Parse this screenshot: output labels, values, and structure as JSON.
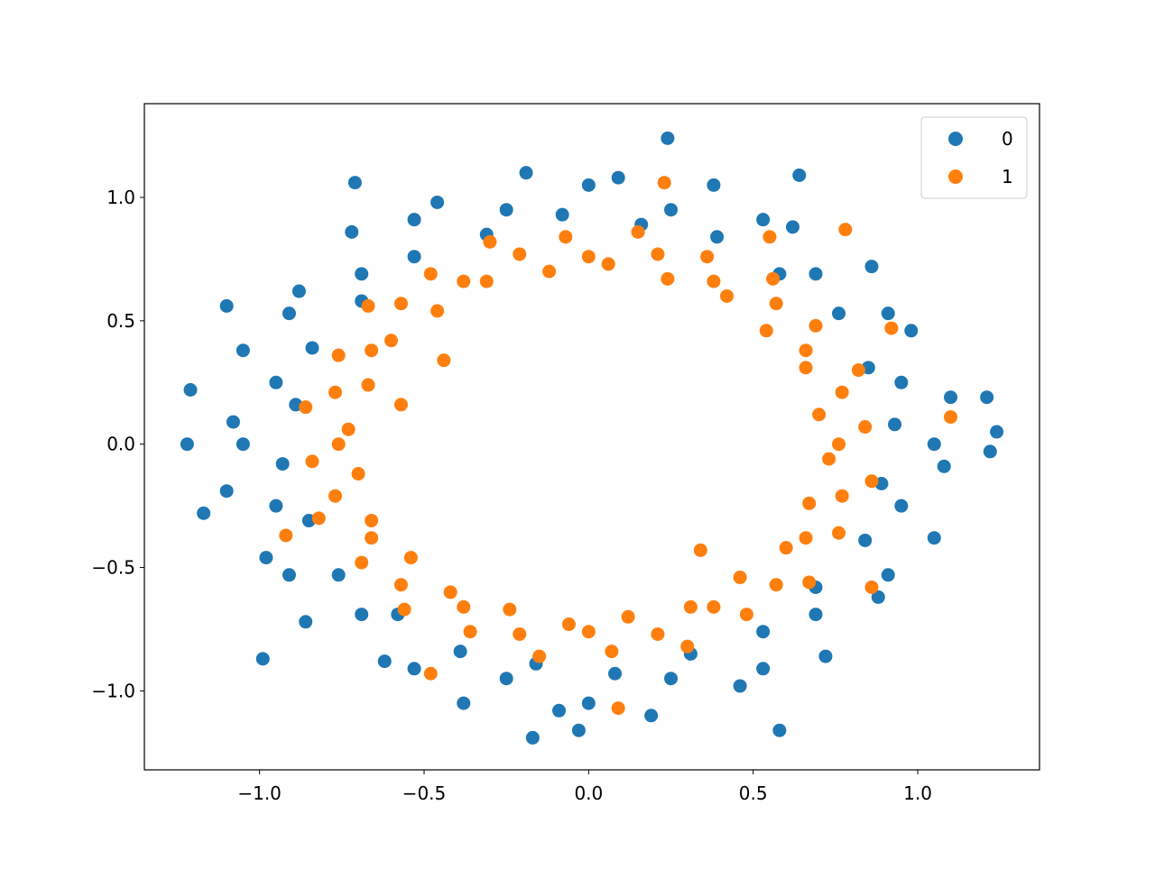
{
  "chart_data": {
    "type": "scatter",
    "title": "",
    "xlabel": "",
    "ylabel": "",
    "xlim": [
      -1.35,
      1.37
    ],
    "ylim": [
      -1.32,
      1.38
    ],
    "xticks": [
      -1.0,
      -0.5,
      0.0,
      0.5,
      1.0
    ],
    "yticks": [
      -1.0,
      -0.5,
      0.0,
      0.5,
      1.0
    ],
    "xtick_labels": [
      "−1.0",
      "−0.5",
      "0.0",
      "0.5",
      "1.0"
    ],
    "ytick_labels": [
      "−1.0",
      "−0.5",
      "0.0",
      "0.5",
      "1.0"
    ],
    "grid": false,
    "legend_position": "top-right",
    "series": [
      {
        "name": "0",
        "color": "#1f77b4",
        "points": [
          [
            1.05,
            0
          ],
          [
            0.93,
            0.08
          ],
          [
            1.1,
            0.19
          ],
          [
            0.95,
            0.25
          ],
          [
            0.85,
            0.31
          ],
          [
            0.98,
            0.46
          ],
          [
            0.91,
            0.53
          ],
          [
            0.76,
            0.53
          ],
          [
            0.86,
            0.72
          ],
          [
            0.69,
            0.69
          ],
          [
            0.58,
            0.69
          ],
          [
            0.62,
            0.88
          ],
          [
            0.53,
            0.91
          ],
          [
            0.39,
            0.84
          ],
          [
            0.38,
            1.05
          ],
          [
            0.25,
            0.95
          ],
          [
            0.16,
            0.89
          ],
          [
            0.09,
            1.08
          ],
          [
            0,
            1.05
          ],
          [
            -0.08,
            0.93
          ],
          [
            -0.19,
            1.1
          ],
          [
            -0.25,
            0.95
          ],
          [
            -0.31,
            0.85
          ],
          [
            -0.46,
            0.98
          ],
          [
            -0.53,
            0.91
          ],
          [
            -0.53,
            0.76
          ],
          [
            -0.72,
            0.86
          ],
          [
            -0.69,
            0.69
          ],
          [
            -0.69,
            0.58
          ],
          [
            -0.88,
            0.62
          ],
          [
            -0.91,
            0.53
          ],
          [
            -0.84,
            0.39
          ],
          [
            -1.05,
            0.38
          ],
          [
            -0.95,
            0.25
          ],
          [
            -0.89,
            0.16
          ],
          [
            -1.08,
            0.09
          ],
          [
            -1.05,
            0
          ],
          [
            -0.93,
            -0.08
          ],
          [
            -1.1,
            -0.19
          ],
          [
            -0.95,
            -0.25
          ],
          [
            -0.85,
            -0.31
          ],
          [
            -0.98,
            -0.46
          ],
          [
            -0.91,
            -0.53
          ],
          [
            -0.76,
            -0.53
          ],
          [
            -0.86,
            -0.72
          ],
          [
            -0.69,
            -0.69
          ],
          [
            -0.58,
            -0.69
          ],
          [
            -0.62,
            -0.88
          ],
          [
            -0.53,
            -0.91
          ],
          [
            -0.39,
            -0.84
          ],
          [
            -0.38,
            -1.05
          ],
          [
            -0.25,
            -0.95
          ],
          [
            -0.16,
            -0.89
          ],
          [
            -0.09,
            -1.08
          ],
          [
            0,
            -1.05
          ],
          [
            0.08,
            -0.93
          ],
          [
            0.19,
            -1.1
          ],
          [
            0.25,
            -0.95
          ],
          [
            0.31,
            -0.85
          ],
          [
            0.46,
            -0.98
          ],
          [
            0.53,
            -0.91
          ],
          [
            0.53,
            -0.76
          ],
          [
            0.72,
            -0.86
          ],
          [
            0.69,
            -0.69
          ],
          [
            0.69,
            -0.58
          ],
          [
            0.88,
            -0.62
          ],
          [
            0.91,
            -0.53
          ],
          [
            0.84,
            -0.39
          ],
          [
            1.05,
            -0.38
          ],
          [
            0.95,
            -0.25
          ],
          [
            0.89,
            -0.16
          ],
          [
            1.08,
            -0.09
          ],
          [
            0.24,
            1.24
          ],
          [
            -1.22,
            0.0
          ],
          [
            -1.21,
            0.22
          ],
          [
            -0.99,
            -0.87
          ],
          [
            0.58,
            -1.16
          ],
          [
            -0.17,
            -1.19
          ],
          [
            1.24,
            0.05
          ],
          [
            1.21,
            0.19
          ],
          [
            -1.17,
            -0.28
          ],
          [
            -0.71,
            1.06
          ],
          [
            -1.1,
            0.56
          ],
          [
            1.22,
            -0.03
          ],
          [
            0.64,
            1.09
          ],
          [
            -0.03,
            -1.16
          ]
        ]
      },
      {
        "name": "1",
        "color": "#ff7f0e",
        "points": [
          [
            0.76,
            0
          ],
          [
            0.84,
            0.07
          ],
          [
            0.7,
            0.12
          ],
          [
            0.77,
            0.21
          ],
          [
            0.82,
            0.3
          ],
          [
            0.66,
            0.31
          ],
          [
            0.66,
            0.38
          ],
          [
            0.69,
            0.48
          ],
          [
            0.54,
            0.46
          ],
          [
            0.57,
            0.57
          ],
          [
            0.56,
            0.67
          ],
          [
            0.42,
            0.6
          ],
          [
            0.38,
            0.66
          ],
          [
            0.36,
            0.76
          ],
          [
            0.24,
            0.67
          ],
          [
            0.21,
            0.77
          ],
          [
            0.15,
            0.86
          ],
          [
            0.06,
            0.73
          ],
          [
            0,
            0.76
          ],
          [
            -0.07,
            0.84
          ],
          [
            -0.12,
            0.7
          ],
          [
            -0.21,
            0.77
          ],
          [
            -0.3,
            0.82
          ],
          [
            -0.31,
            0.66
          ],
          [
            -0.38,
            0.66
          ],
          [
            -0.48,
            0.69
          ],
          [
            -0.46,
            0.54
          ],
          [
            -0.57,
            0.57
          ],
          [
            -0.67,
            0.56
          ],
          [
            -0.6,
            0.42
          ],
          [
            -0.66,
            0.38
          ],
          [
            -0.76,
            0.36
          ],
          [
            -0.67,
            0.24
          ],
          [
            -0.77,
            0.21
          ],
          [
            -0.86,
            0.15
          ],
          [
            -0.73,
            0.06
          ],
          [
            -0.76,
            0
          ],
          [
            -0.84,
            -0.07
          ],
          [
            -0.7,
            -0.12
          ],
          [
            -0.77,
            -0.21
          ],
          [
            -0.82,
            -0.3
          ],
          [
            -0.66,
            -0.31
          ],
          [
            -0.66,
            -0.38
          ],
          [
            -0.69,
            -0.48
          ],
          [
            -0.54,
            -0.46
          ],
          [
            -0.57,
            -0.57
          ],
          [
            -0.56,
            -0.67
          ],
          [
            -0.42,
            -0.6
          ],
          [
            -0.38,
            -0.66
          ],
          [
            -0.36,
            -0.76
          ],
          [
            -0.24,
            -0.67
          ],
          [
            -0.21,
            -0.77
          ],
          [
            -0.15,
            -0.86
          ],
          [
            -0.06,
            -0.73
          ],
          [
            0,
            -0.76
          ],
          [
            0.07,
            -0.84
          ],
          [
            0.12,
            -0.7
          ],
          [
            0.21,
            -0.77
          ],
          [
            0.3,
            -0.82
          ],
          [
            0.31,
            -0.66
          ],
          [
            0.38,
            -0.66
          ],
          [
            0.48,
            -0.69
          ],
          [
            0.46,
            -0.54
          ],
          [
            0.57,
            -0.57
          ],
          [
            0.67,
            -0.56
          ],
          [
            0.6,
            -0.42
          ],
          [
            0.66,
            -0.38
          ],
          [
            0.76,
            -0.36
          ],
          [
            0.67,
            -0.24
          ],
          [
            0.77,
            -0.21
          ],
          [
            0.86,
            -0.15
          ],
          [
            0.73,
            -0.06
          ],
          [
            0.23,
            1.06
          ],
          [
            1.1,
            0.11
          ],
          [
            -0.57,
            0.16
          ],
          [
            0.34,
            -0.43
          ],
          [
            0.09,
            -1.07
          ],
          [
            0.78,
            0.87
          ],
          [
            -0.44,
            0.34
          ],
          [
            -0.92,
            -0.37
          ],
          [
            0.92,
            0.47
          ],
          [
            0.55,
            0.84
          ],
          [
            -0.48,
            -0.93
          ],
          [
            0.86,
            -0.58
          ]
        ]
      }
    ]
  }
}
